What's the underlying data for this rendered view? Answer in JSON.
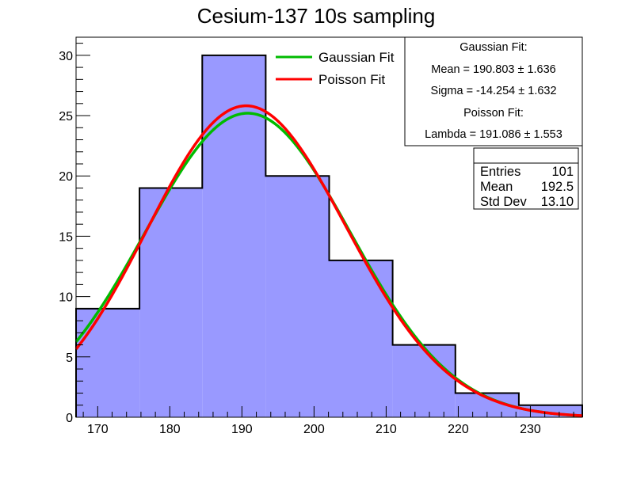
{
  "chart_data": {
    "type": "bar",
    "title": "Cesium-137 10s sampling",
    "xlabel": "",
    "ylabel": "",
    "xlim": [
      167.0,
      237.2
    ],
    "ylim": [
      0,
      31.5
    ],
    "x_ticks": [
      170,
      180,
      190,
      200,
      210,
      220,
      230
    ],
    "y_ticks": [
      0,
      5,
      10,
      15,
      20,
      25,
      30
    ],
    "bins": {
      "edges": [
        167.0,
        175.8,
        184.5,
        193.3,
        202.1,
        210.9,
        219.6,
        228.4,
        237.2
      ],
      "values": [
        9,
        19,
        30,
        20,
        13,
        6,
        2,
        1
      ],
      "fill_color": "#9999ff",
      "line_color": "#000000"
    },
    "curves": [
      {
        "name": "Gaussian Fit",
        "type": "gaussian",
        "color": "#00bb00",
        "amplitude": 25.2,
        "mean": 190.803,
        "sigma": 14.254
      },
      {
        "name": "Poisson Fit",
        "type": "poisson",
        "color": "#ff0000",
        "amplitude": 25.8,
        "lambda": 191.086
      }
    ],
    "legend": {
      "placement": "top-center",
      "entries": [
        {
          "label": "Gaussian Fit",
          "color": "#00bb00"
        },
        {
          "label": "Poisson Fit",
          "color": "#ff0000"
        }
      ]
    },
    "fit_box": {
      "placement": "top-right",
      "lines": [
        "Gaussian Fit:",
        "Mean = 190.803 ± 1.636",
        "Sigma = -14.254 ± 1.632",
        "Poisson Fit:",
        "Lambda = 191.086 ± 1.553"
      ]
    },
    "stats_box": {
      "placement": "top-right",
      "rows": [
        {
          "label": "Entries",
          "value": "101"
        },
        {
          "label": "Mean",
          "value": "192.5"
        },
        {
          "label": "Std Dev",
          "value": "13.10"
        }
      ]
    }
  }
}
